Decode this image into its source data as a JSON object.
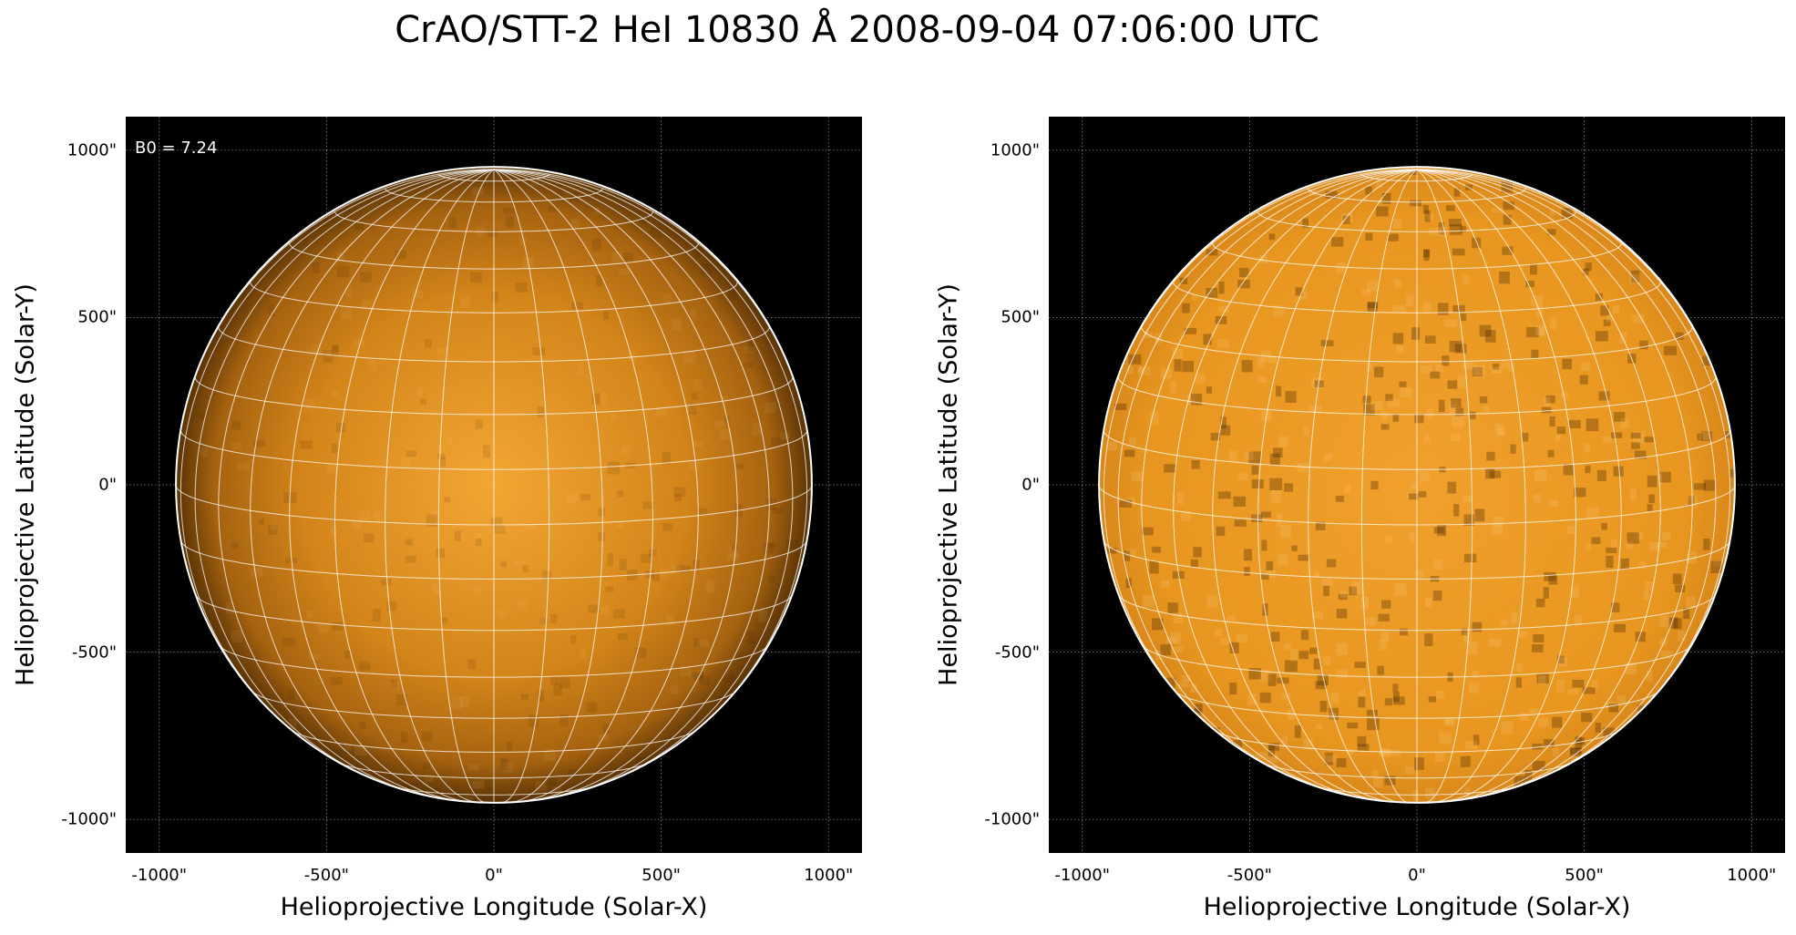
{
  "title": "CrAO/STT-2 HeI 10830 Å 2008-09-04 07:06:00 UTC",
  "colors": {
    "background": "#000000",
    "disk_center": "#f4a634",
    "disk_mid": "#d4851a",
    "disk_limb": "#5a3306",
    "grid_line": "#ffffff",
    "limb_circle": "#ffffff"
  },
  "axes_common": {
    "xlim": [
      -1100,
      1100
    ],
    "ylim": [
      -1100,
      1100
    ],
    "solar_radius_arcsec": 950,
    "x_ticks": [
      "-1000\"",
      "-500\"",
      "0\"",
      "500\"",
      "1000\""
    ],
    "y_ticks": [
      "1000\"",
      "500\"",
      "0\"",
      "-500\"",
      "-1000\""
    ],
    "tick_values": [
      -1000,
      -500,
      0,
      500,
      1000
    ],
    "grid": true,
    "heliographic_grid_spacing_deg": 10
  },
  "panels": [
    {
      "id": "left",
      "xlabel": "Helioprojective Longitude (Solar-X)",
      "ylabel": "Helioprojective Latitude (Solar-Y)",
      "annotation": "B0 = 7.24",
      "limb_darkened": true
    },
    {
      "id": "right",
      "xlabel": "Helioprojective Longitude (Solar-X)",
      "ylabel": "Helioprojective Latitude (Solar-Y)",
      "annotation": "",
      "limb_darkened": false
    }
  ]
}
